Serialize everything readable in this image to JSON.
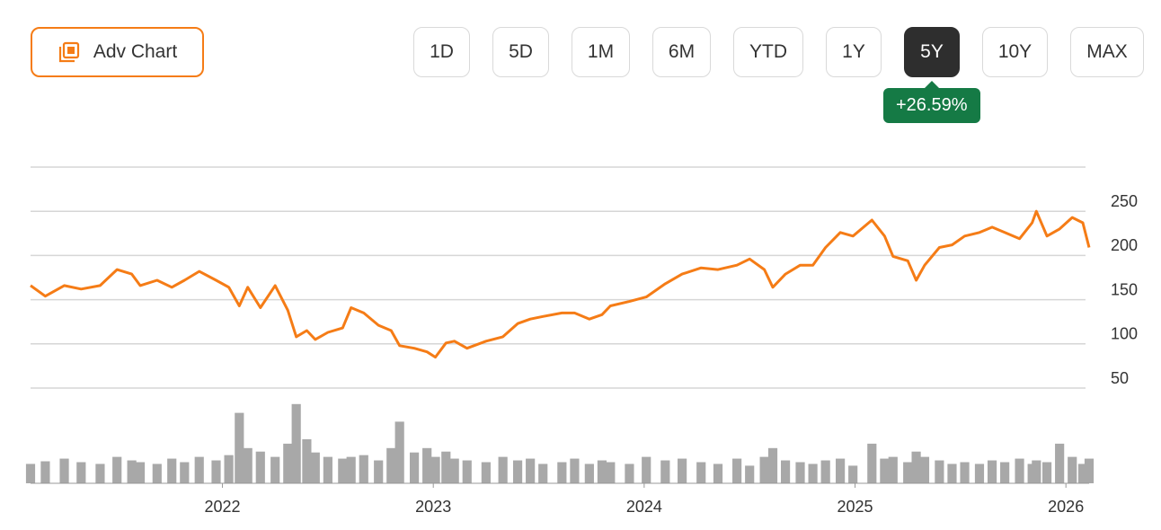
{
  "controls": {
    "adv_chart": "Adv Chart",
    "ranges": [
      "1D",
      "5D",
      "1M",
      "6M",
      "YTD",
      "1Y",
      "5Y",
      "10Y",
      "MAX"
    ],
    "active_range": 6,
    "change": "+26.59%"
  },
  "chart_data": {
    "type": "line",
    "color": "#f57c16",
    "volume_color": "#a8a8a8",
    "x": [
      2021.09,
      2021.16,
      2021.25,
      2021.33,
      2021.42,
      2021.5,
      2021.57,
      2021.61,
      2021.69,
      2021.76,
      2021.82,
      2021.89,
      2021.97,
      2022.03,
      2022.08,
      2022.12,
      2022.18,
      2022.25,
      2022.31,
      2022.35,
      2022.4,
      2022.44,
      2022.5,
      2022.57,
      2022.61,
      2022.67,
      2022.74,
      2022.8,
      2022.84,
      2022.91,
      2022.97,
      2023.01,
      2023.06,
      2023.1,
      2023.16,
      2023.25,
      2023.33,
      2023.4,
      2023.46,
      2023.52,
      2023.61,
      2023.67,
      2023.74,
      2023.8,
      2023.84,
      2023.93,
      2024.01,
      2024.1,
      2024.18,
      2024.27,
      2024.35,
      2024.44,
      2024.5,
      2024.57,
      2024.61,
      2024.67,
      2024.74,
      2024.8,
      2024.86,
      2024.93,
      2024.99,
      2025.08,
      2025.14,
      2025.18,
      2025.25,
      2025.29,
      2025.33,
      2025.4,
      2025.46,
      2025.52,
      2025.59,
      2025.65,
      2025.71,
      2025.78,
      2025.84,
      2025.86,
      2025.91,
      2025.97,
      2026.03,
      2026.08,
      2026.11
    ],
    "values": [
      166,
      154,
      166,
      162,
      166,
      184,
      179,
      166,
      172,
      164,
      172,
      182,
      172,
      164,
      143,
      164,
      141,
      166,
      138,
      108,
      115,
      105,
      113,
      118,
      141,
      135,
      121,
      115,
      98,
      95,
      91,
      85,
      101,
      103,
      95,
      103,
      108,
      123,
      128,
      131,
      135,
      135,
      128,
      133,
      143,
      148,
      153,
      168,
      179,
      186,
      184,
      189,
      196,
      184,
      164,
      179,
      189,
      189,
      209,
      226,
      222,
      240,
      222,
      199,
      194,
      172,
      189,
      209,
      212,
      222,
      226,
      232,
      226,
      219,
      237,
      250,
      222,
      230,
      243,
      237,
      209
    ],
    "volume": [
      22,
      25,
      28,
      24,
      22,
      30,
      26,
      24,
      22,
      28,
      24,
      30,
      26,
      32,
      80,
      40,
      36,
      30,
      45,
      90,
      50,
      35,
      30,
      28,
      30,
      32,
      26,
      40,
      70,
      35,
      40,
      30,
      36,
      28,
      26,
      24,
      30,
      26,
      28,
      22,
      24,
      28,
      22,
      26,
      24,
      22,
      30,
      26,
      28,
      24,
      22,
      28,
      20,
      30,
      40,
      26,
      24,
      22,
      26,
      28,
      20,
      45,
      28,
      30,
      24,
      36,
      30,
      26,
      22,
      24,
      22,
      26,
      24,
      28,
      22,
      26,
      24,
      45,
      30,
      22,
      28
    ],
    "volume_ylim": [
      0,
      100
    ],
    "xlim": [
      2021.09,
      2026.11
    ],
    "xticks": [
      2022,
      2023,
      2024,
      2025,
      2026
    ],
    "ylim": [
      50,
      300
    ],
    "yticks": [
      50,
      100,
      150,
      200,
      250
    ],
    "grid": true
  }
}
